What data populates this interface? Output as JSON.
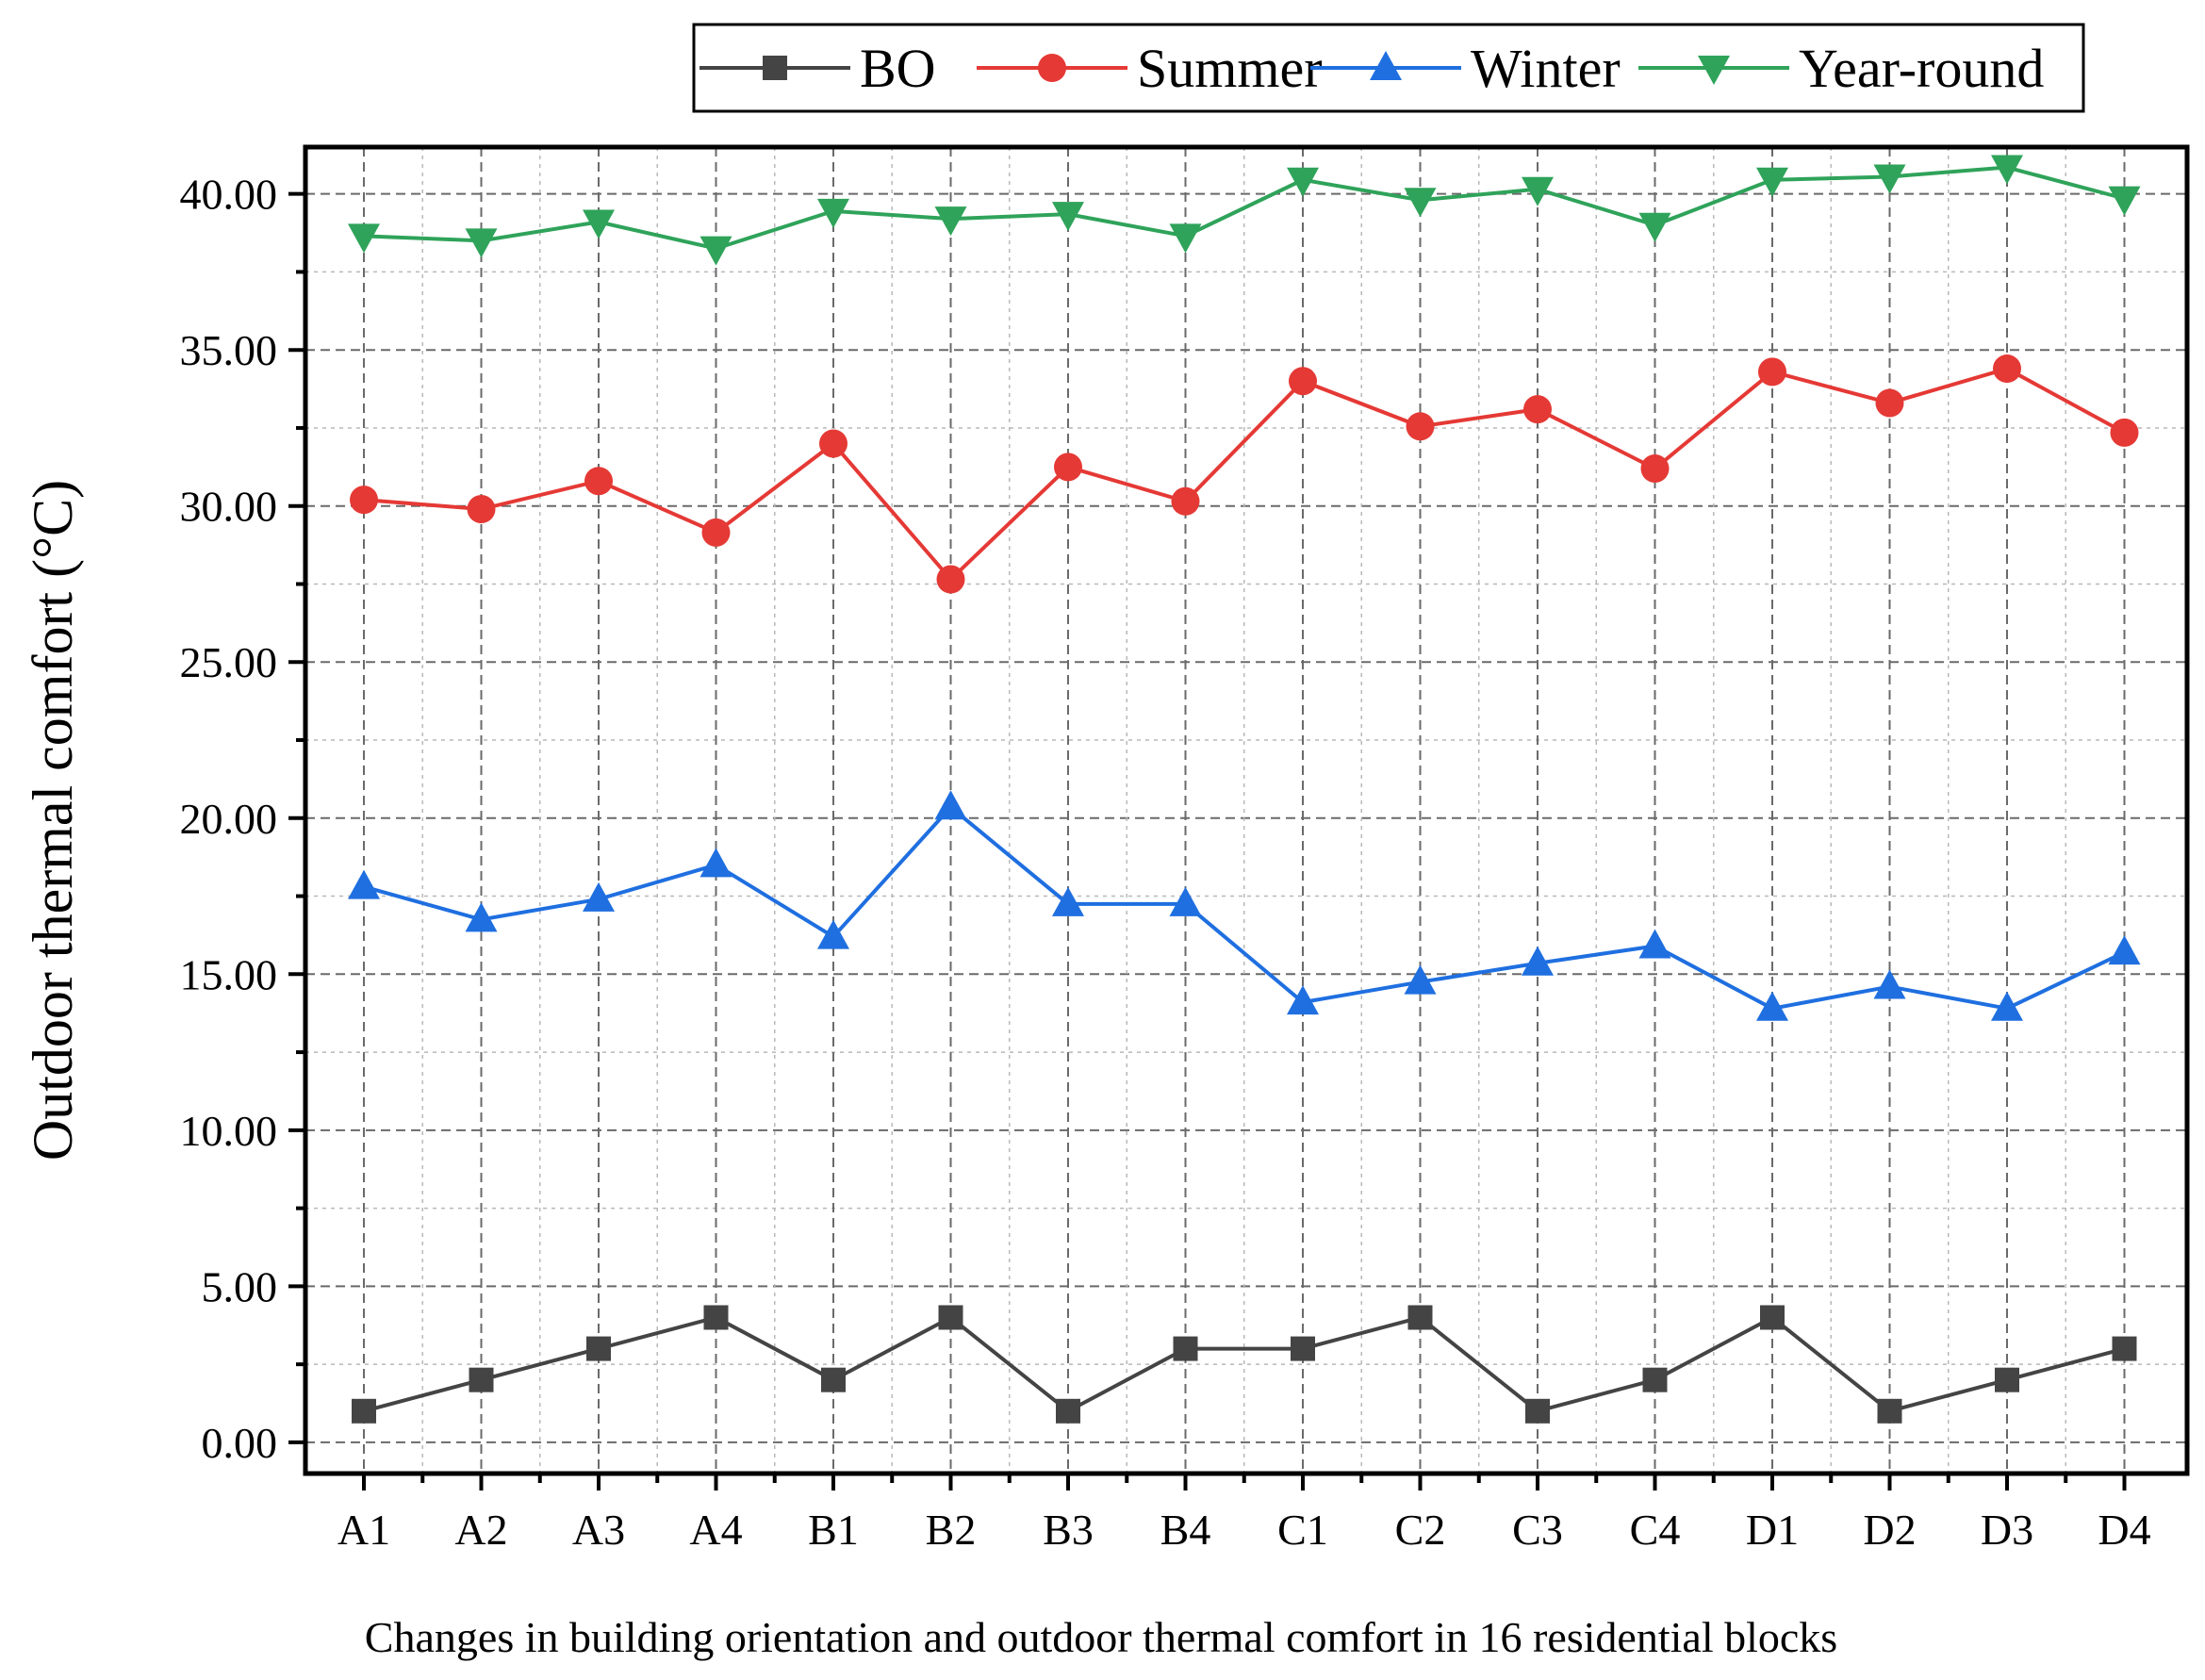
{
  "chart_data": {
    "type": "line",
    "title": "",
    "xlabel": "Changes in building orientation and  outdoor thermal comfort in 16 residential blocks",
    "ylabel": "Outdoor thermal comfort (°C)",
    "categories": [
      "A1",
      "A2",
      "A3",
      "A4",
      "B1",
      "B2",
      "B3",
      "B4",
      "C1",
      "C2",
      "C3",
      "C4",
      "D1",
      "D2",
      "D3",
      "D4"
    ],
    "ylim": [
      -1.0,
      41.5
    ],
    "yticks": [
      "0.00",
      "5.00",
      "10.00",
      "15.00",
      "20.00",
      "25.00",
      "30.00",
      "35.00",
      "40.00"
    ],
    "ytick_values": [
      0,
      5,
      10,
      15,
      20,
      25,
      30,
      35,
      40
    ],
    "grid": true,
    "legend_position": "top-right",
    "series": [
      {
        "name": "BO",
        "marker": "square",
        "color": "#444444",
        "values": [
          1,
          2,
          3,
          4,
          2,
          4,
          1,
          3,
          3,
          4,
          1,
          2,
          4,
          1,
          2,
          3
        ]
      },
      {
        "name": "Summer",
        "marker": "circle",
        "color": "#e53935",
        "values": [
          30.2,
          29.9,
          30.8,
          29.15,
          32.0,
          27.65,
          31.25,
          30.15,
          34.0,
          32.55,
          33.1,
          31.2,
          34.3,
          33.3,
          34.4,
          32.35
        ]
      },
      {
        "name": "Winter",
        "marker": "triangle-up",
        "color": "#1f6fe0",
        "values": [
          17.8,
          16.75,
          17.4,
          18.5,
          16.2,
          20.35,
          17.25,
          17.25,
          14.1,
          14.75,
          15.35,
          15.9,
          13.9,
          14.6,
          13.9,
          15.7
        ]
      },
      {
        "name": "Year-round",
        "marker": "triangle-down",
        "color": "#2fa35a",
        "values": [
          38.65,
          38.5,
          39.1,
          38.25,
          39.45,
          39.2,
          39.35,
          38.65,
          40.45,
          39.8,
          40.15,
          39.0,
          40.45,
          40.55,
          40.85,
          39.85
        ]
      }
    ]
  }
}
